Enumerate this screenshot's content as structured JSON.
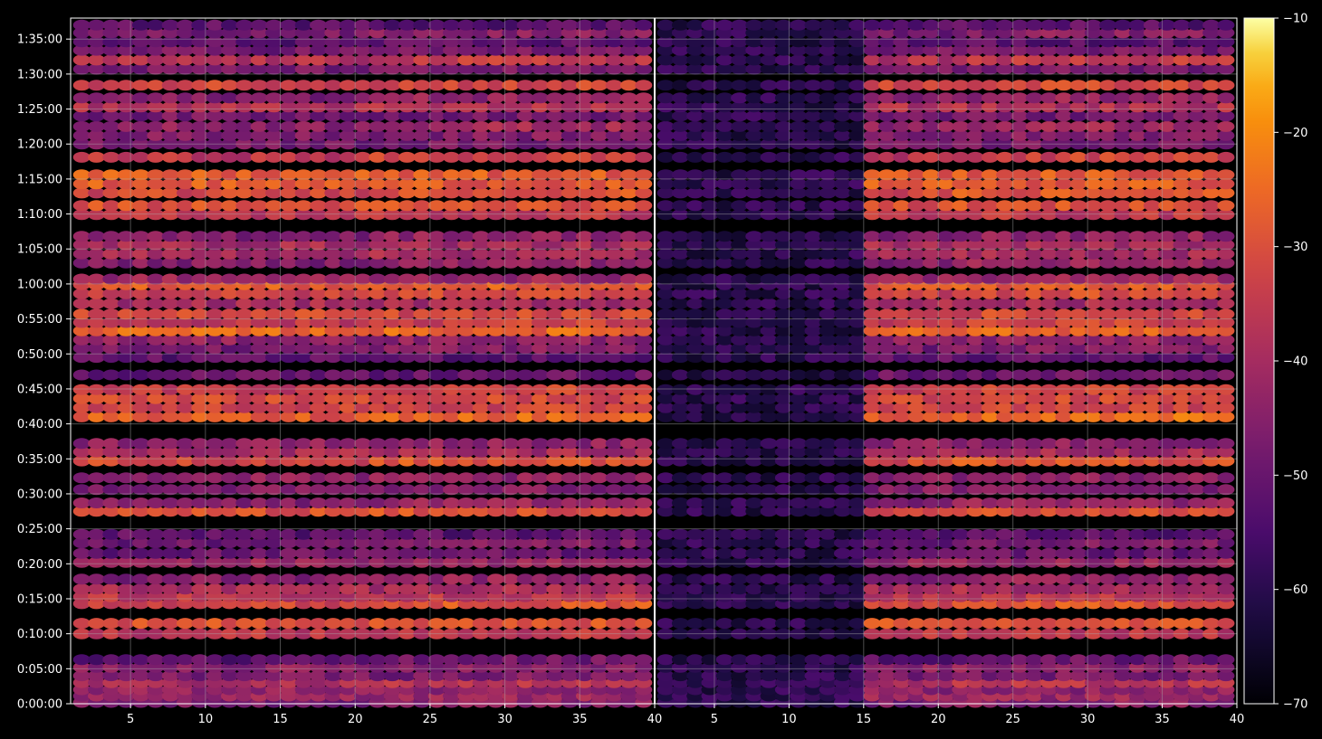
{
  "chart_data": {
    "type": "heatmap",
    "title": "",
    "xlabel": "",
    "ylabel": "",
    "panels": [
      {
        "name": "",
        "x_range": [
          1,
          40
        ],
        "dead_zone_x": null
      },
      {
        "name": "",
        "x_range": [
          1,
          40
        ],
        "dead_zone_x": [
          1,
          14.5
        ]
      }
    ],
    "x_ticks": [
      5,
      10,
      15,
      20,
      25,
      30,
      35,
      40
    ],
    "y_range_minutes": [
      0,
      98
    ],
    "y_ticks": [
      {
        "minutes": 0,
        "label": "0:00:00"
      },
      {
        "minutes": 5,
        "label": "0:05:00"
      },
      {
        "minutes": 10,
        "label": "0:10:00"
      },
      {
        "minutes": 15,
        "label": "0:15:00"
      },
      {
        "minutes": 20,
        "label": "0:20:00"
      },
      {
        "minutes": 25,
        "label": "0:25:00"
      },
      {
        "minutes": 30,
        "label": "0:30:00"
      },
      {
        "minutes": 35,
        "label": "0:35:00"
      },
      {
        "minutes": 40,
        "label": "0:40:00"
      },
      {
        "minutes": 45,
        "label": "0:45:00"
      },
      {
        "minutes": 50,
        "label": "0:50:00"
      },
      {
        "minutes": 55,
        "label": "0:55:00"
      },
      {
        "minutes": 60,
        "label": "1:00:00"
      },
      {
        "minutes": 65,
        "label": "1:05:00"
      },
      {
        "minutes": 70,
        "label": "1:10:00"
      },
      {
        "minutes": 75,
        "label": "1:15:00"
      },
      {
        "minutes": 80,
        "label": "1:20:00"
      },
      {
        "minutes": 85,
        "label": "1:25:00"
      },
      {
        "minutes": 90,
        "label": "1:30:00"
      },
      {
        "minutes": 95,
        "label": "1:35:00"
      }
    ],
    "bands": [
      {
        "t": 0.2,
        "v": -48
      },
      {
        "t": 1.1,
        "v": -42
      },
      {
        "t": 2.0,
        "v": -44
      },
      {
        "t": 3.0,
        "v": -40
      },
      {
        "t": 4.0,
        "v": -47
      },
      {
        "t": 5.2,
        "v": -44
      },
      {
        "t": 6.3,
        "v": -52
      },
      {
        "t": 10.0,
        "v": -36
      },
      {
        "t": 11.5,
        "v": -30
      },
      {
        "t": 14.3,
        "v": -32
      },
      {
        "t": 15.3,
        "v": -36
      },
      {
        "t": 16.4,
        "v": -39
      },
      {
        "t": 17.8,
        "v": -46
      },
      {
        "t": 20.2,
        "v": -42
      },
      {
        "t": 21.5,
        "v": -50
      },
      {
        "t": 23.0,
        "v": -50
      },
      {
        "t": 24.2,
        "v": -52
      },
      {
        "t": 27.5,
        "v": -30
      },
      {
        "t": 28.7,
        "v": -46
      },
      {
        "t": 30.6,
        "v": -46
      },
      {
        "t": 32.3,
        "v": -44
      },
      {
        "t": 34.7,
        "v": -32
      },
      {
        "t": 36.0,
        "v": -40
      },
      {
        "t": 37.2,
        "v": -44
      },
      {
        "t": 41.0,
        "v": -28
      },
      {
        "t": 42.3,
        "v": -33
      },
      {
        "t": 43.6,
        "v": -32
      },
      {
        "t": 44.9,
        "v": -35
      },
      {
        "t": 47.0,
        "v": -50
      },
      {
        "t": 49.5,
        "v": -52
      },
      {
        "t": 50.8,
        "v": -48
      },
      {
        "t": 52.0,
        "v": -44
      },
      {
        "t": 53.3,
        "v": -26
      },
      {
        "t": 54.5,
        "v": -36
      },
      {
        "t": 55.7,
        "v": -32
      },
      {
        "t": 57.2,
        "v": -40
      },
      {
        "t": 58.6,
        "v": -34
      },
      {
        "t": 59.9,
        "v": -28
      },
      {
        "t": 60.7,
        "v": -42
      },
      {
        "t": 63.0,
        "v": -46
      },
      {
        "t": 64.3,
        "v": -40
      },
      {
        "t": 65.6,
        "v": -40
      },
      {
        "t": 66.8,
        "v": -46
      },
      {
        "t": 69.9,
        "v": -36
      },
      {
        "t": 71.2,
        "v": -30
      },
      {
        "t": 73.0,
        "v": -32
      },
      {
        "t": 74.3,
        "v": -28
      },
      {
        "t": 75.6,
        "v": -28
      },
      {
        "t": 78.1,
        "v": -36
      },
      {
        "t": 80.0,
        "v": -48
      },
      {
        "t": 81.2,
        "v": -46
      },
      {
        "t": 82.5,
        "v": -44
      },
      {
        "t": 84.0,
        "v": -48
      },
      {
        "t": 85.3,
        "v": -38
      },
      {
        "t": 86.6,
        "v": -46
      },
      {
        "t": 88.4,
        "v": -32
      },
      {
        "t": 90.7,
        "v": -48
      },
      {
        "t": 92.0,
        "v": -38
      },
      {
        "t": 93.4,
        "v": -48
      },
      {
        "t": 94.6,
        "v": -52
      },
      {
        "t": 95.9,
        "v": -48
      },
      {
        "t": 97.0,
        "v": -52
      }
    ],
    "colorbar": {
      "colormap": "inferno",
      "min": -70,
      "max": -10,
      "ticks": [
        -70,
        -60,
        -50,
        -40,
        -30,
        -20,
        -10
      ],
      "tick_labels": [
        "−70",
        "−60",
        "−50",
        "−40",
        "−30",
        "−20",
        "−10"
      ]
    },
    "background_color": "#000000",
    "grid": "on",
    "grid_color": "#aaaaaa"
  }
}
